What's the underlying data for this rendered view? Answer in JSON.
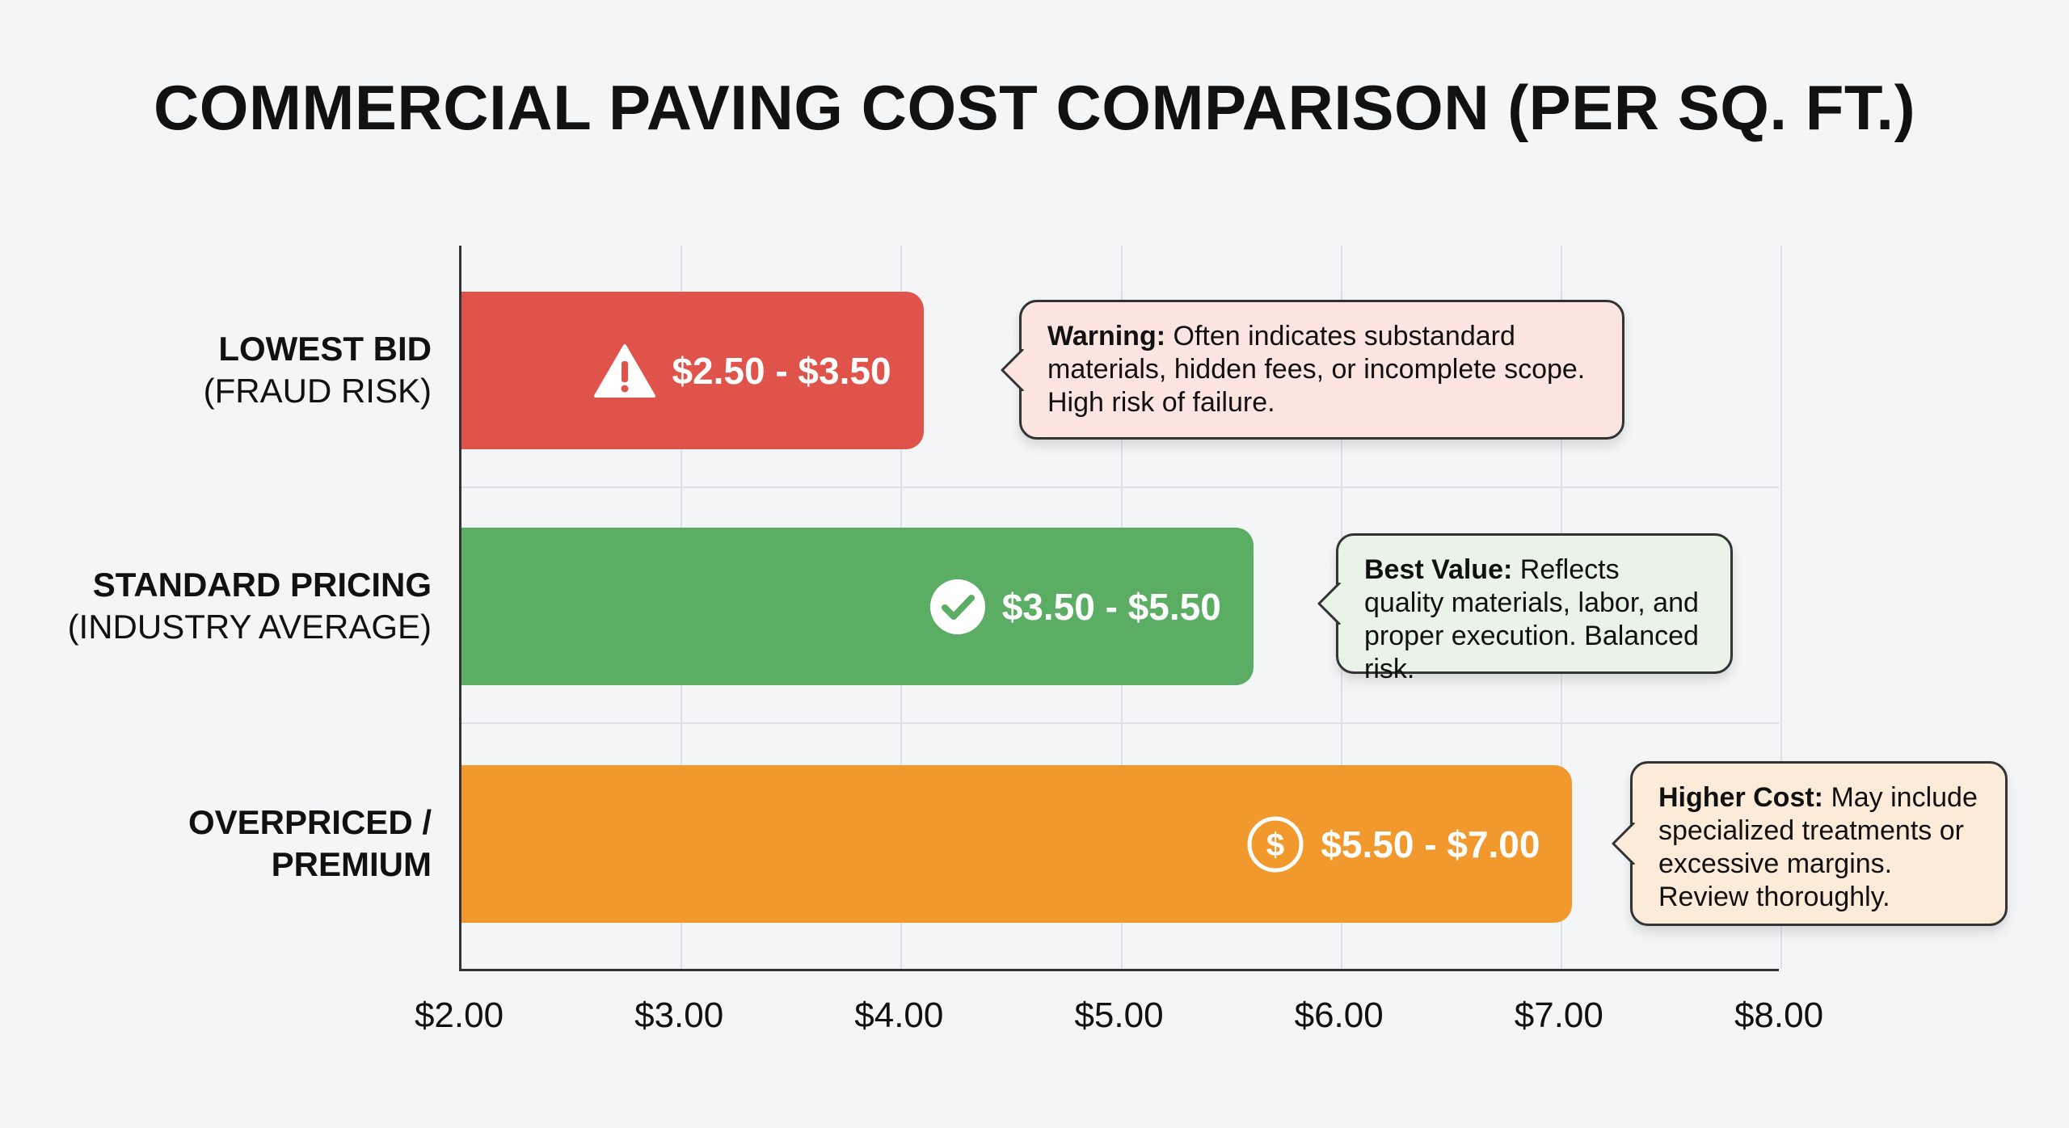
{
  "chart_data": {
    "type": "bar",
    "orientation": "horizontal",
    "title": "COMMERCIAL PAVING COST COMPARISON (PER SQ. FT.)",
    "xlim": [
      2.0,
      8.0
    ],
    "x_ticks": [
      "$2.00",
      "$3.00",
      "$4.00",
      "$5.00",
      "$6.00",
      "$7.00",
      "$8.00"
    ],
    "grid": true,
    "bars": [
      {
        "category_line1": "LOWEST BID",
        "category_line2": "(FRAUD RISK)",
        "range": [
          2.5,
          3.5
        ],
        "bar_end": 4.1,
        "label": "$2.50 - $3.50",
        "icon": "warning-triangle-icon",
        "color": "#e0534a",
        "callout_bold": "Warning:",
        "callout_text": " Often indicates substandard materials, hidden fees, or incomplete scope. High risk of failure.",
        "callout_bg": "#fce4e0"
      },
      {
        "category_line1": "STANDARD PRICING",
        "category_line2": "(INDUSTRY AVERAGE)",
        "range": [
          3.5,
          5.5
        ],
        "bar_end": 5.6,
        "label": "$3.50 - $5.50",
        "icon": "check-circle-icon",
        "color": "#5aad62",
        "callout_bold": "Best Value:",
        "callout_text": " Reflects quality materials, labor, and proper execution. Balanced risk.",
        "callout_bg": "#e9f3e7"
      },
      {
        "category_line1": "OVERPRICED /",
        "category_line2": "PREMIUM",
        "range": [
          5.5,
          7.0
        ],
        "bar_end": 7.05,
        "label": "$5.50 - $7.00",
        "icon": "dollar-circle-icon",
        "color": "#f2992e",
        "callout_bold": "Higher Cost:",
        "callout_text": " May include specialized treatments or excessive margins. Review thoroughly.",
        "callout_bg": "#fcebd8"
      }
    ]
  }
}
